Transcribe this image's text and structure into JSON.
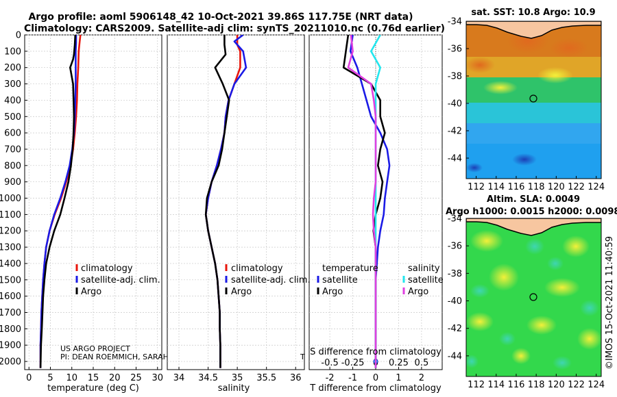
{
  "figure": {
    "title_line1": "Argo profile: aoml 5906148_42 10-Oct-2021 39.86S 117.75E (NRT data)",
    "title_line2": "Climatology: CARS2009. Satellite-adj clim: synTS_20211010.nc (0.76d earlier)",
    "project_line1": "US ARGO PROJECT",
    "project_line2": "PI: DEAN ROEMMICH, SARAH",
    "clipped_overlap_text": "T",
    "copyright": "©IMOS 15-Oct-2021 11:40:59"
  },
  "colors": {
    "climatology": "#e8150b",
    "satellite": "#1a1ae6",
    "argo": "#000000",
    "salinity_satellite": "#22e6ee",
    "salinity_argo": "#e040e0",
    "land": "#f7c6a0"
  },
  "chart_data": [
    {
      "id": "temperature",
      "type": "line",
      "xlabel": "temperature (deg C)",
      "ylabel": "",
      "xlim": [
        -1,
        31
      ],
      "ylim": [
        2050,
        0
      ],
      "xticks": [
        0,
        5,
        10,
        15,
        20,
        25,
        30
      ],
      "yticks": [
        0,
        100,
        200,
        300,
        400,
        500,
        600,
        700,
        800,
        900,
        1000,
        1100,
        1200,
        1300,
        1400,
        1500,
        1600,
        1700,
        1800,
        1900,
        2000
      ],
      "grid": true,
      "legend": [
        "climatology",
        "satellite-adj. clim.",
        "Argo"
      ],
      "series": [
        {
          "name": "climatology",
          "color": "#e8150b",
          "x": [
            12.0,
            11.8,
            11.6,
            11.5,
            11.3,
            11.2,
            11.0,
            10.7,
            10.3,
            9.7,
            8.7,
            7.5,
            6.0,
            4.8,
            4.0,
            3.6,
            3.3,
            3.1,
            2.9,
            2.8,
            2.7,
            2.7
          ],
          "y": [
            0,
            50,
            100,
            200,
            300,
            400,
            500,
            600,
            700,
            800,
            900,
            1000,
            1100,
            1200,
            1300,
            1400,
            1500,
            1600,
            1700,
            1800,
            1900,
            2040
          ]
        },
        {
          "name": "satellite-adj. clim.",
          "color": "#1a1ae6",
          "x": [
            11.0,
            11.0,
            10.9,
            10.9,
            10.9,
            10.8,
            10.7,
            10.5,
            10.1,
            9.5,
            8.5,
            7.3,
            5.9,
            4.8,
            4.0,
            3.6,
            3.3,
            3.1,
            2.9,
            2.8,
            2.7,
            2.7
          ],
          "y": [
            0,
            50,
            100,
            200,
            300,
            400,
            500,
            600,
            700,
            800,
            900,
            1000,
            1100,
            1200,
            1300,
            1400,
            1500,
            1600,
            1700,
            1800,
            1900,
            2040
          ]
        },
        {
          "name": "Argo",
          "color": "#000000",
          "x": [
            10.8,
            10.7,
            10.5,
            10.3,
            9.6,
            10.3,
            10.4,
            10.5,
            10.4,
            10.2,
            9.8,
            9.2,
            8.3,
            7.3,
            5.9,
            4.8,
            4.0,
            3.6,
            3.3,
            3.0,
            2.8,
            2.7
          ],
          "y": [
            0,
            60,
            120,
            150,
            200,
            300,
            400,
            500,
            600,
            700,
            800,
            900,
            1000,
            1100,
            1200,
            1300,
            1400,
            1500,
            1600,
            1800,
            1900,
            2040
          ]
        }
      ]
    },
    {
      "id": "salinity",
      "type": "line",
      "xlabel": "salinity",
      "ylabel": "",
      "xlim": [
        33.8,
        36.15
      ],
      "ylim": [
        2050,
        0
      ],
      "xticks": [
        34,
        34.5,
        35,
        35.5,
        36
      ],
      "grid": true,
      "legend": [
        "climatology",
        "satellite-adj. clim.",
        "Argo"
      ],
      "series": [
        {
          "name": "climatology",
          "color": "#e8150b",
          "x": [
            35.0,
            35.0,
            35.05,
            35.05,
            34.95,
            34.85,
            34.8,
            34.78,
            34.72,
            34.65,
            34.56,
            34.5,
            34.46,
            34.5,
            34.56,
            34.62,
            34.66,
            34.68,
            34.7,
            34.7,
            34.71,
            34.71
          ],
          "y": [
            0,
            60,
            100,
            200,
            300,
            400,
            500,
            600,
            700,
            800,
            900,
            1000,
            1100,
            1200,
            1300,
            1400,
            1500,
            1600,
            1700,
            1800,
            1900,
            2040
          ]
        },
        {
          "name": "satellite-adj. clim.",
          "color": "#1a1ae6",
          "x": [
            35.1,
            34.95,
            35.1,
            35.15,
            34.95,
            34.85,
            34.8,
            34.78,
            34.72,
            34.65,
            34.56,
            34.5,
            34.46,
            34.5,
            34.56,
            34.62,
            34.66,
            34.68,
            34.7,
            34.7,
            34.71,
            34.71
          ],
          "y": [
            0,
            40,
            100,
            200,
            300,
            400,
            500,
            600,
            700,
            800,
            900,
            1000,
            1100,
            1200,
            1300,
            1400,
            1500,
            1600,
            1700,
            1800,
            1900,
            2040
          ]
        },
        {
          "name": "Argo",
          "color": "#000000",
          "x": [
            34.78,
            34.78,
            34.8,
            34.62,
            34.75,
            34.86,
            34.82,
            34.78,
            34.74,
            34.68,
            34.56,
            34.48,
            34.46,
            34.5,
            34.56,
            34.62,
            34.66,
            34.68,
            34.7,
            34.7,
            34.71,
            34.71
          ],
          "y": [
            0,
            60,
            120,
            200,
            300,
            400,
            500,
            600,
            700,
            800,
            900,
            1000,
            1100,
            1200,
            1300,
            1400,
            1500,
            1600,
            1700,
            1800,
            1900,
            2040
          ]
        }
      ]
    },
    {
      "id": "difference",
      "type": "line",
      "xlabel": "T difference from climatology",
      "secondary_xlabel": "S difference from climatology",
      "xlim": [
        -2.9,
        2.9
      ],
      "ylim": [
        2050,
        0
      ],
      "xticks": [
        -2,
        -1,
        0,
        1,
        2
      ],
      "secondary_xticks": [
        -0.5,
        -0.25,
        0,
        0.25,
        0.5
      ],
      "secondary_xtick_labels": [
        "-0.5",
        "-0.25",
        "0",
        "0.25",
        "0.5"
      ],
      "secondary_xlim": [
        -0.725,
        0.725
      ],
      "grid": true,
      "legend_temperature_header": "temperature",
      "legend_salinity_header": "salinity",
      "legend_temperature": [
        "satellite",
        "Argo"
      ],
      "legend_salinity": [
        "satellite",
        "Argo"
      ],
      "series": [
        {
          "name": "temperature satellite",
          "color": "#1a1ae6",
          "axis": "T",
          "x": [
            -1.0,
            -1.1,
            -0.8,
            -0.6,
            -0.4,
            -0.2,
            0.2,
            0.5,
            0.6,
            0.5,
            0.4,
            0.35,
            0.2,
            0.1,
            0.05,
            0.0,
            0.0,
            0.0,
            0.0,
            0.0,
            0.0
          ],
          "y": [
            0,
            100,
            200,
            300,
            400,
            500,
            600,
            700,
            800,
            900,
            1000,
            1100,
            1200,
            1300,
            1400,
            1500,
            1600,
            1700,
            1800,
            1900,
            2040
          ]
        },
        {
          "name": "temperature Argo",
          "color": "#000000",
          "axis": "T",
          "x": [
            -1.2,
            -1.3,
            -1.4,
            -0.2,
            0.2,
            0.2,
            0.4,
            0.2,
            0.1,
            0.3,
            0.2,
            0.0,
            -0.1,
            0.0,
            0.0,
            0.0,
            0.0,
            0.0,
            0.0,
            0.0,
            0.0
          ],
          "y": [
            0,
            100,
            200,
            300,
            400,
            500,
            600,
            700,
            800,
            900,
            1000,
            1100,
            1200,
            1300,
            1400,
            1500,
            1600,
            1700,
            1800,
            1900,
            2040
          ]
        },
        {
          "name": "salinity satellite",
          "color": "#22e6ee",
          "axis": "S",
          "x": [
            0.05,
            -0.05,
            0.05,
            0.0,
            0.0,
            0.0,
            0.0,
            0.0,
            0.0,
            0.0,
            0.0,
            0.0,
            0.0,
            0.0,
            0.0,
            0.0,
            0.0,
            0.0,
            0.0,
            0.0,
            0.0
          ],
          "y": [
            0,
            100,
            200,
            300,
            400,
            500,
            600,
            700,
            800,
            900,
            1000,
            1100,
            1200,
            1300,
            1400,
            1500,
            1600,
            1700,
            1800,
            1900,
            2040
          ]
        },
        {
          "name": "salinity Argo",
          "color": "#e040e0",
          "axis": "S",
          "x": [
            -0.27,
            -0.25,
            -0.3,
            -0.05,
            -0.02,
            0.0,
            0.0,
            0.0,
            0.0,
            0.0,
            -0.02,
            -0.03,
            -0.02,
            0.0,
            0.0,
            0.0,
            0.0,
            0.0,
            0.0,
            0.0,
            0.0
          ],
          "y": [
            0,
            100,
            200,
            300,
            400,
            500,
            600,
            700,
            800,
            900,
            1000,
            1100,
            1200,
            1300,
            1400,
            1500,
            1600,
            1700,
            1800,
            1900,
            2040
          ]
        }
      ]
    },
    {
      "id": "sst_map",
      "type": "heatmap",
      "title": "sat. SST: 10.8 Argo: 10.9",
      "xlim": [
        111,
        124.5
      ],
      "ylim": [
        -45.5,
        -34
      ],
      "xticks": [
        112,
        114,
        116,
        118,
        120,
        122,
        124
      ],
      "yticks": [
        -34,
        -36,
        -38,
        -40,
        -42,
        -44
      ],
      "marker": {
        "lon": 117.75,
        "lat": -39.86
      }
    },
    {
      "id": "sla_map",
      "type": "heatmap",
      "title": "Altim. SLA: 0.0049",
      "subtitle": "Argo h1000: 0.0015 h2000: 0.0098",
      "xlim": [
        111,
        124.5
      ],
      "ylim": [
        -45.5,
        -34
      ],
      "xticks": [
        112,
        114,
        116,
        118,
        120,
        122,
        124
      ],
      "yticks": [
        -34,
        -36,
        -38,
        -40,
        -42,
        -44
      ],
      "marker": {
        "lon": 117.75,
        "lat": -39.86
      }
    }
  ]
}
